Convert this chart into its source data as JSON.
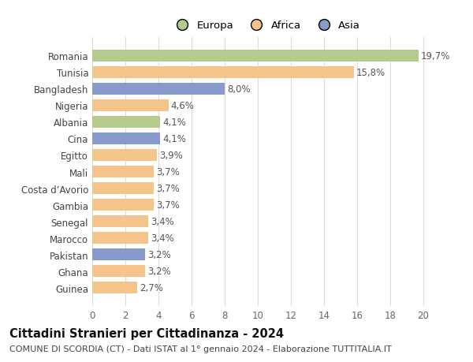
{
  "countries": [
    "Romania",
    "Tunisia",
    "Bangladesh",
    "Nigeria",
    "Albania",
    "Cina",
    "Egitto",
    "Mali",
    "Costa d’Avorio",
    "Gambia",
    "Senegal",
    "Marocco",
    "Pakistan",
    "Ghana",
    "Guinea"
  ],
  "values": [
    19.7,
    15.8,
    8.0,
    4.6,
    4.1,
    4.1,
    3.9,
    3.7,
    3.7,
    3.7,
    3.4,
    3.4,
    3.2,
    3.2,
    2.7
  ],
  "labels": [
    "19,7%",
    "15,8%",
    "8,0%",
    "4,6%",
    "4,1%",
    "4,1%",
    "3,9%",
    "3,7%",
    "3,7%",
    "3,7%",
    "3,4%",
    "3,4%",
    "3,2%",
    "3,2%",
    "2,7%"
  ],
  "continents": [
    "Europa",
    "Africa",
    "Asia",
    "Africa",
    "Europa",
    "Asia",
    "Africa",
    "Africa",
    "Africa",
    "Africa",
    "Africa",
    "Africa",
    "Asia",
    "Africa",
    "Africa"
  ],
  "colors": {
    "Europa": "#b5cb8e",
    "Africa": "#f5c48a",
    "Asia": "#8899cc"
  },
  "xlim": [
    0,
    21
  ],
  "xticks": [
    0,
    2,
    4,
    6,
    8,
    10,
    12,
    14,
    16,
    18,
    20
  ],
  "title": "Cittadini Stranieri per Cittadinanza - 2024",
  "subtitle": "COMUNE DI SCORDIA (CT) - Dati ISTAT al 1° gennaio 2024 - Elaborazione TUTTITALIA.IT",
  "bg_color": "#ffffff",
  "grid_color": "#dddddd",
  "bar_height": 0.72,
  "label_fontsize": 8.5,
  "title_fontsize": 10.5,
  "subtitle_fontsize": 8,
  "ytick_fontsize": 8.5,
  "xtick_fontsize": 8.5,
  "legend_fontsize": 9.5
}
